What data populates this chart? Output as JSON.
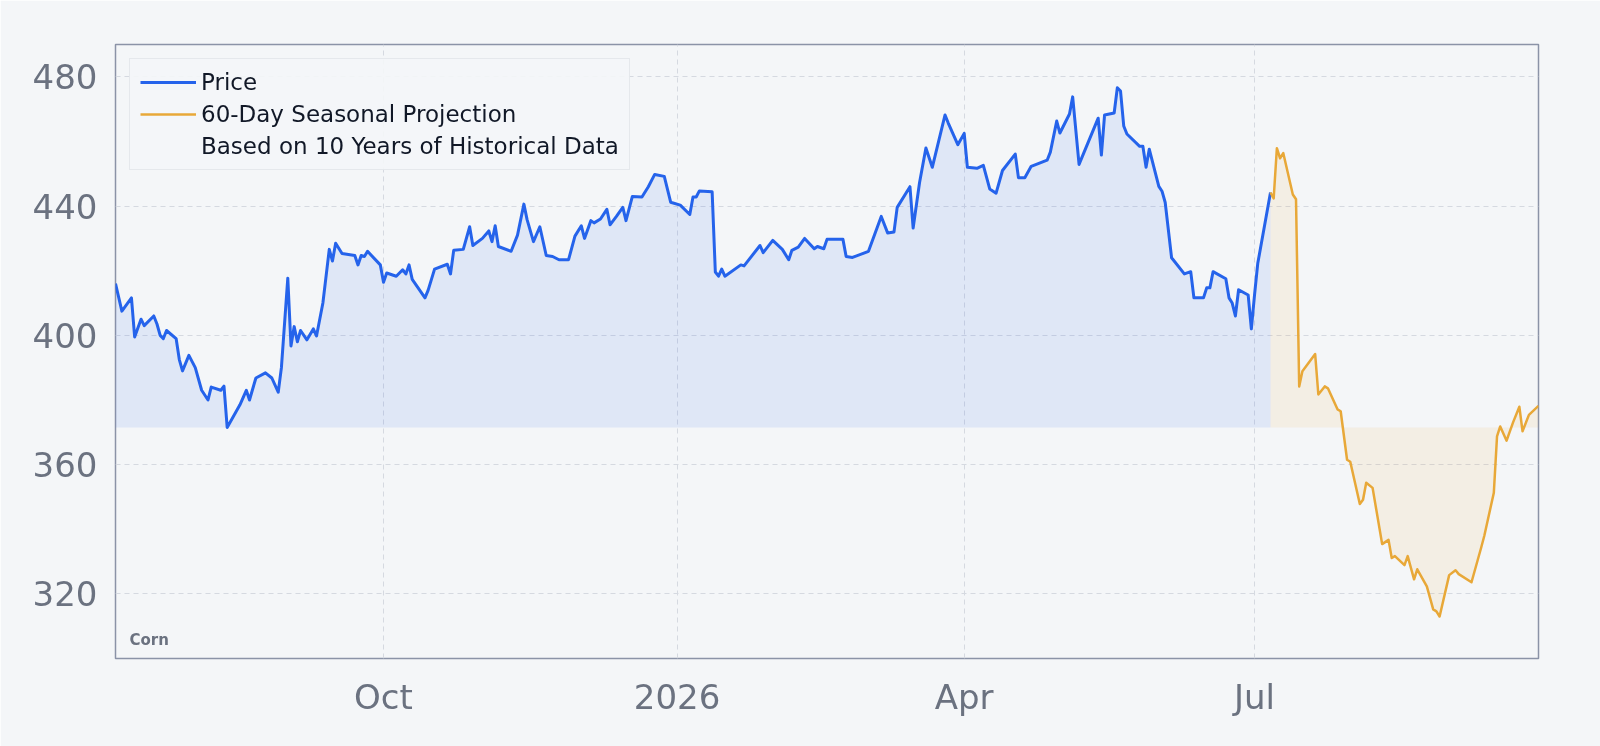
{
  "chart_data": {
    "type": "area",
    "xlim": [
      "2025-07-09",
      "2026-09-28"
    ],
    "xticks": [
      {
        "value": "2025-10-01",
        "label": "Oct"
      },
      {
        "value": "2026-01-01",
        "label": "2026"
      },
      {
        "value": "2026-04-01",
        "label": "Apr"
      },
      {
        "value": "2026-07-01",
        "label": "Jul"
      }
    ],
    "ylim": [
      300,
      490
    ],
    "yticks": [
      320,
      360,
      400,
      440,
      480
    ],
    "grid": true,
    "legend": "top left",
    "annotations": [
      "Based on 10 Years of Historical Data",
      "Corn"
    ],
    "series": [
      {
        "name": "Price",
        "color": "#2563eb",
        "x": [
          "2025-07-09",
          "2025-07-11",
          "2025-07-14",
          "2025-07-15",
          "2025-07-17",
          "2025-07-18",
          "2025-07-21",
          "2025-07-22",
          "2025-07-23",
          "2025-07-24",
          "2025-07-25",
          "2025-07-28",
          "2025-07-29",
          "2025-07-30",
          "2025-08-01",
          "2025-08-03",
          "2025-08-05",
          "2025-08-07",
          "2025-08-08",
          "2025-08-11",
          "2025-08-12",
          "2025-08-13",
          "2025-08-17",
          "2025-08-19",
          "2025-08-20",
          "2025-08-22",
          "2025-08-25",
          "2025-08-27",
          "2025-08-29",
          "2025-08-30",
          "2025-09-01",
          "2025-09-02",
          "2025-09-03",
          "2025-09-04",
          "2025-09-05",
          "2025-09-07",
          "2025-09-09",
          "2025-09-10",
          "2025-09-12",
          "2025-09-14",
          "2025-09-15",
          "2025-09-16",
          "2025-09-18",
          "2025-09-22",
          "2025-09-23",
          "2025-09-24",
          "2025-09-25",
          "2025-09-26",
          "2025-09-30",
          "2025-10-01",
          "2025-10-02",
          "2025-10-05",
          "2025-10-07",
          "2025-10-08",
          "2025-10-09",
          "2025-10-10",
          "2025-10-14",
          "2025-10-15",
          "2025-10-17",
          "2025-10-21",
          "2025-10-22",
          "2025-10-23",
          "2025-10-26",
          "2025-10-28",
          "2025-10-29",
          "2025-11-01",
          "2025-11-03",
          "2025-11-04",
          "2025-11-05",
          "2025-11-06",
          "2025-11-10",
          "2025-11-12",
          "2025-11-14",
          "2025-11-15",
          "2025-11-17",
          "2025-11-19",
          "2025-11-21",
          "2025-11-23",
          "2025-11-25",
          "2025-11-28",
          "2025-11-30",
          "2025-12-02",
          "2025-12-03",
          "2025-12-05",
          "2025-12-06",
          "2025-12-08",
          "2025-12-10",
          "2025-12-11",
          "2025-12-13",
          "2025-12-15",
          "2025-12-16",
          "2025-12-18",
          "2025-12-21",
          "2025-12-23",
          "2025-12-25",
          "2025-12-28",
          "2025-12-30",
          "2026-01-02",
          "2026-01-05",
          "2026-01-06",
          "2026-01-07",
          "2026-01-08",
          "2026-01-12",
          "2026-01-13",
          "2026-01-14",
          "2026-01-15",
          "2026-01-16",
          "2026-01-21",
          "2026-01-22",
          "2026-01-27",
          "2026-01-28",
          "2026-01-31",
          "2026-02-03",
          "2026-02-05",
          "2026-02-06",
          "2026-02-08",
          "2026-02-10",
          "2026-02-13",
          "2026-02-14",
          "2026-02-16",
          "2026-02-17",
          "2026-02-22",
          "2026-02-23",
          "2026-02-25",
          "2026-03-02",
          "2026-03-06",
          "2026-03-08",
          "2026-03-10",
          "2026-03-11",
          "2026-03-15",
          "2026-03-16",
          "2026-03-18",
          "2026-03-20",
          "2026-03-22",
          "2026-03-26",
          "2026-03-27",
          "2026-03-30",
          "2026-04-01",
          "2026-04-02",
          "2026-04-05",
          "2026-04-07",
          "2026-04-09",
          "2026-04-11",
          "2026-04-13",
          "2026-04-17",
          "2026-04-18",
          "2026-04-20",
          "2026-04-22",
          "2026-04-27",
          "2026-04-28",
          "2026-04-30",
          "2026-05-01",
          "2026-05-04",
          "2026-05-05",
          "2026-05-07",
          "2026-05-13",
          "2026-05-14",
          "2026-05-15",
          "2026-05-18",
          "2026-05-19",
          "2026-05-20",
          "2026-05-21",
          "2026-05-22",
          "2026-05-26",
          "2026-05-27",
          "2026-05-28",
          "2026-05-29",
          "2026-06-01",
          "2026-06-02",
          "2026-06-03",
          "2026-06-05",
          "2026-06-09",
          "2026-06-11",
          "2026-06-12",
          "2026-06-15",
          "2026-06-16",
          "2026-06-17",
          "2026-06-18",
          "2026-06-22",
          "2026-06-23",
          "2026-06-24",
          "2026-06-25",
          "2026-06-26",
          "2026-06-29",
          "2026-06-30",
          "2026-07-01",
          "2026-07-02",
          "2026-07-06"
        ],
        "values": [
          416,
          407.5,
          411.6,
          399.5,
          405,
          403,
          406,
          403.5,
          400,
          399,
          401.5,
          399,
          392.5,
          389,
          393.8,
          390,
          383,
          380,
          384,
          383,
          384.3,
          371.5,
          378.5,
          383,
          380,
          386.8,
          388.4,
          386.8,
          382.4,
          390,
          417.7,
          396.7,
          402.7,
          398,
          401.5,
          398.6,
          402,
          399.8,
          410,
          426.6,
          423,
          428.5,
          425.3,
          424.7,
          421.8,
          424.7,
          424.4,
          426,
          421.8,
          416.4,
          419.3,
          418.3,
          420.3,
          419,
          421.8,
          417.3,
          411.6,
          414,
          420.5,
          422,
          419,
          426.3,
          426.6,
          433.6,
          427.8,
          430,
          432.3,
          429,
          433.9,
          427.5,
          426,
          431,
          440.6,
          435.8,
          429,
          433.6,
          424.7,
          424.4,
          423.4,
          423.4,
          430.7,
          433.9,
          430,
          435.5,
          434.8,
          436,
          439,
          434.2,
          436.8,
          439.6,
          435.5,
          443,
          442.8,
          446,
          449.8,
          449.2,
          441.2,
          440.3,
          437.4,
          442.8,
          442.8,
          444.7,
          444.4,
          419.6,
          418.3,
          420.5,
          418.3,
          421.8,
          421.5,
          427.8,
          425.6,
          429.4,
          426.6,
          423.4,
          426.3,
          427.3,
          430,
          426.8,
          427.5,
          426.8,
          429.7,
          429.7,
          424.4,
          424.1,
          426,
          436.8,
          431.7,
          432,
          439.6,
          446,
          433.2,
          447.2,
          458,
          452,
          468.2,
          465.7,
          459,
          462.5,
          452,
          451.7,
          452.6,
          445.3,
          444,
          451,
          456.1,
          448.8,
          448.8,
          452.3,
          454.2,
          456.7,
          466.3,
          462.6,
          468.5,
          473.8,
          452.9,
          467.2,
          455.8,
          468.2,
          468.8,
          476.6,
          475.6,
          464.8,
          462.3,
          458.5,
          458.5,
          452,
          457.6,
          446.1,
          444.6,
          441.1,
          424,
          419,
          419.7,
          411.6,
          411.6,
          414.7,
          414.7,
          419.7,
          417.5,
          411.6,
          410,
          406,
          414.1,
          412.5,
          402,
          412.5,
          422.2,
          444.2
        ]
      },
      {
        "name": "60-Day Seasonal Projection",
        "color": "#e8a838",
        "x": [
          "2026-07-06",
          "2026-07-07",
          "2026-07-08",
          "2026-07-09",
          "2026-07-10",
          "2026-07-13",
          "2026-07-14",
          "2026-07-15",
          "2026-07-16",
          "2026-07-20",
          "2026-07-21",
          "2026-07-23",
          "2026-07-24",
          "2026-07-27",
          "2026-07-28",
          "2026-07-30",
          "2026-07-31",
          "2026-08-03",
          "2026-08-04",
          "2026-08-05",
          "2026-08-07",
          "2026-08-10",
          "2026-08-12",
          "2026-08-13",
          "2026-08-14",
          "2026-08-17",
          "2026-08-18",
          "2026-08-20",
          "2026-08-21",
          "2026-08-24",
          "2026-08-26",
          "2026-08-27",
          "2026-08-28",
          "2026-08-31",
          "2026-09-02",
          "2026-09-03",
          "2026-09-07",
          "2026-09-10",
          "2026-09-11",
          "2026-09-14",
          "2026-09-15",
          "2026-09-16",
          "2026-09-18",
          "2026-09-20",
          "2026-09-22",
          "2026-09-23",
          "2026-09-25",
          "2026-09-28"
        ],
        "values": [
          444.2,
          442.4,
          457.9,
          454.8,
          456.4,
          443.6,
          442.1,
          384.2,
          388.9,
          394.2,
          381.7,
          384.2,
          383.6,
          377.1,
          376.5,
          361.5,
          360.9,
          347.8,
          349.1,
          354.4,
          352.8,
          335.4,
          336.7,
          331.1,
          331.7,
          328.9,
          331.7,
          324.5,
          327.6,
          322.3,
          315.2,
          314.6,
          313,
          325.8,
          327.3,
          326.1,
          323.6,
          334.2,
          337.9,
          351.3,
          368.7,
          371.8,
          367.4,
          373,
          377.9,
          370.3,
          375.4,
          378.2
        ]
      }
    ]
  }
}
